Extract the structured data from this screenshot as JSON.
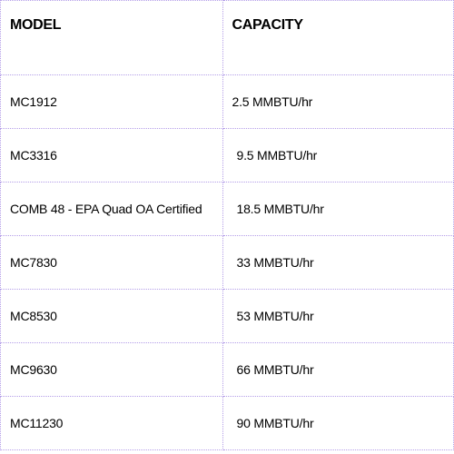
{
  "table": {
    "columns": [
      "MODEL",
      "CAPACITY"
    ],
    "rows": [
      {
        "model": "MC1912",
        "capacity": "2.5 MMBTU/hr",
        "pad": "less"
      },
      {
        "model": "MC3316",
        "capacity": "9.5 MMBTU/hr",
        "pad": "more"
      },
      {
        "model": "COMB 48 - EPA Quad OA Certified",
        "capacity": "18.5 MMBTU/hr",
        "pad": "more"
      },
      {
        "model": "MC7830",
        "capacity": "33 MMBTU/hr",
        "pad": "more"
      },
      {
        "model": "MC8530",
        "capacity": "53 MMBTU/hr",
        "pad": "more"
      },
      {
        "model": "MC9630",
        "capacity": "66 MMBTU/hr",
        "pad": "more"
      },
      {
        "model": "MC11230",
        "capacity": "90 MMBTU/hr",
        "pad": "more"
      }
    ],
    "border_color": "#b49ee8",
    "header_fontsize": 16,
    "cell_fontsize": 14,
    "background_color": "#ffffff",
    "text_color": "#000000"
  }
}
